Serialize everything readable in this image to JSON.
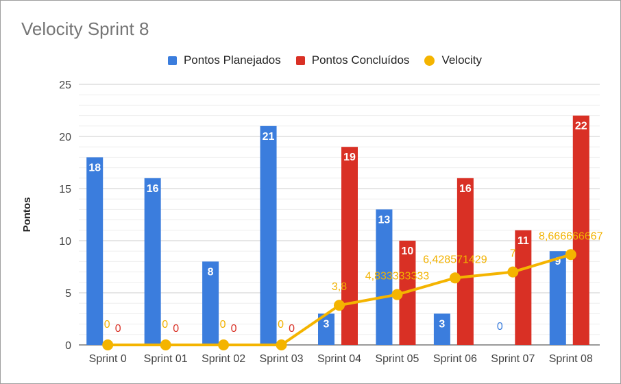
{
  "chart_data": {
    "type": "bar",
    "title": "Velocity Sprint 8",
    "ylabel": "Pontos",
    "xlabel": "",
    "ylim": [
      0,
      25
    ],
    "yticks": [
      0,
      5,
      10,
      15,
      20,
      25
    ],
    "grid": true,
    "legend_position": "top",
    "categories": [
      "Sprint 0",
      "Sprint 01",
      "Sprint 02",
      "Sprint 03",
      "Sprint 04",
      "Sprint 05",
      "Sprint 06",
      "Sprint 07",
      "Sprint 08"
    ],
    "series": [
      {
        "name": "Pontos Planejados",
        "kind": "bar",
        "color": "#3b7ddd",
        "values": [
          18,
          16,
          8,
          21,
          3,
          13,
          3,
          0,
          9
        ],
        "labels": [
          "18",
          "16",
          "8",
          "21",
          "3",
          "13",
          "3",
          "0",
          "9"
        ]
      },
      {
        "name": "Pontos Concluídos",
        "kind": "bar",
        "color": "#d93025",
        "values": [
          0,
          0,
          0,
          0,
          19,
          10,
          16,
          11,
          22
        ],
        "labels": [
          "0",
          "0",
          "0",
          "0",
          "19",
          "10",
          "16",
          "11",
          "22"
        ]
      },
      {
        "name": "Velocity",
        "kind": "line",
        "color": "#f4b400",
        "values": [
          0,
          0,
          0,
          0,
          3.8,
          4.833333333,
          6.428571429,
          7,
          8.666666667
        ],
        "labels": [
          "0",
          "0",
          "0",
          "0",
          "3,8",
          "4,833333333",
          "6,428571429",
          "7",
          "8,666666667"
        ]
      }
    ]
  }
}
